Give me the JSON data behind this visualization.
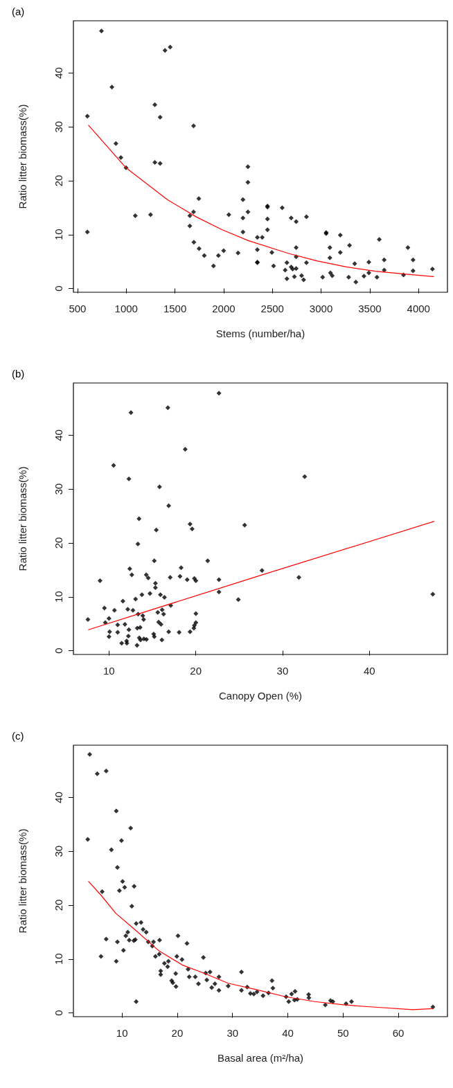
{
  "chart_data": [
    {
      "type": "scatter",
      "title": "(a)",
      "xlabel": "Stems (number/ha)",
      "ylabel": "Ratio litter biomass(%)",
      "xlim": [
        458,
        4297
      ],
      "ylim": [
        -0.7,
        49.7
      ],
      "xticks": [
        500,
        1000,
        1500,
        2000,
        2500,
        3000,
        3500,
        4000
      ],
      "yticks": [
        0,
        10,
        20,
        30,
        40
      ],
      "grid": false,
      "series": [
        {
          "marker": "diamond",
          "color": "#000000",
          "x": [
            601,
            601,
            746,
            853,
            894,
            945,
            998,
            1093,
            1250,
            1294,
            1294,
            1348,
            1348,
            1398,
            1451,
            1653,
            1653,
            1691,
            1691,
            1694,
            1745,
            1748,
            1801,
            1896,
            1946,
            2000,
            2053,
            2148,
            2198,
            2198,
            2198,
            2249,
            2249,
            2249,
            2346,
            2346,
            2346,
            2346,
            2396,
            2450,
            2450,
            2450,
            2450,
            2495,
            2512,
            2601,
            2649,
            2631,
            2649,
            2693,
            2693,
            2708,
            2726,
            2744,
            2744,
            2744,
            2744,
            2800,
            2821,
            2850,
            2850,
            3016,
            3052,
            3052,
            3090,
            3090,
            3096,
            3114,
            3197,
            3197,
            3283,
            3292,
            3345,
            3357,
            3440,
            3490,
            3490,
            3573,
            3597,
            3648,
            3648,
            3846,
            3891,
            3944,
            3944,
            4143
          ],
          "values": [
            32.0,
            10.5,
            47.8,
            37.4,
            26.9,
            24.3,
            22.4,
            13.5,
            13.7,
            34.1,
            23.4,
            31.8,
            23.2,
            44.2,
            44.8,
            11.6,
            13.5,
            30.2,
            14.2,
            8.6,
            16.7,
            7.4,
            6.1,
            4.2,
            6.1,
            7.0,
            13.7,
            6.6,
            16.5,
            13.1,
            10.5,
            22.6,
            19.7,
            14.2,
            9.5,
            7.2,
            4.9,
            4.8,
            9.5,
            15.3,
            15.1,
            12.9,
            10.9,
            6.7,
            4.2,
            15.0,
            4.8,
            3.4,
            1.8,
            13.1,
            4.0,
            3.6,
            2.2,
            12.4,
            7.6,
            5.9,
            3.7,
            2.4,
            1.6,
            13.3,
            4.8,
            2.1,
            10.4,
            10.2,
            7.6,
            5.7,
            2.9,
            2.4,
            9.9,
            6.7,
            2.1,
            8.0,
            4.6,
            1.2,
            2.3,
            4.9,
            2.9,
            2.1,
            9.1,
            5.3,
            3.4,
            2.5,
            7.6,
            5.3,
            3.3,
            3.6
          ]
        },
        {
          "type": "line",
          "marker": "none",
          "color": "#ff0000",
          "x": [
            613,
            998,
            1422,
            1718,
            1985,
            2252,
            2667,
            2963,
            3259,
            3556,
            3852,
            4154
          ],
          "values": [
            30.3,
            22.4,
            16.5,
            13.3,
            10.9,
            8.9,
            6.5,
            5.1,
            4.0,
            3.2,
            2.7,
            2.2
          ]
        }
      ]
    },
    {
      "type": "scatter",
      "title": "(b)",
      "xlabel": "Canopy Open (%)",
      "ylabel": "Ratio litter biomass(%)",
      "xlim": [
        5.9,
        49.0
      ],
      "ylim": [
        -0.7,
        49.7
      ],
      "xticks": [
        10,
        20,
        30,
        40
      ],
      "yticks": [
        0,
        10,
        20,
        30,
        40
      ],
      "grid": false,
      "series": [
        {
          "marker": "diamond",
          "color": "#000000",
          "x": [
            7.57,
            8.97,
            9.47,
            9.57,
            10.0,
            10.07,
            10.0,
            10.53,
            10.63,
            11.0,
            11.0,
            11.46,
            11.6,
            11.83,
            12.03,
            12.06,
            12.16,
            12.23,
            12.29,
            12.29,
            12.39,
            12.53,
            12.63,
            12.76,
            13.06,
            13.23,
            13.26,
            13.33,
            13.36,
            13.46,
            13.49,
            13.59,
            13.63,
            13.79,
            13.89,
            13.99,
            14.02,
            14.29,
            14.32,
            14.52,
            14.72,
            15.15,
            15.22,
            15.22,
            15.35,
            15.35,
            15.45,
            15.62,
            15.72,
            15.82,
            15.92,
            15.99,
            16.09,
            16.12,
            16.29,
            16.39,
            16.78,
            16.88,
            16.88,
            17.05,
            17.12,
            18.08,
            18.18,
            18.31,
            18.78,
            19.01,
            19.34,
            19.34,
            19.58,
            19.78,
            19.84,
            19.84,
            20.01,
            20.01,
            20.01,
            21.37,
            22.67,
            22.67,
            22.67,
            24.9,
            25.63,
            27.63,
            31.88,
            32.55,
            47.31
          ],
          "values": [
            5.8,
            13.0,
            7.9,
            5.2,
            6.0,
            3.5,
            2.6,
            34.4,
            7.5,
            4.8,
            3.4,
            1.4,
            9.2,
            4.9,
            1.8,
            1.4,
            7.7,
            2.7,
            31.9,
            3.9,
            15.2,
            44.2,
            14.1,
            7.5,
            9.6,
            1.0,
            4.2,
            19.8,
            6.8,
            24.5,
            2.4,
            4.3,
            2.0,
            10.4,
            6.5,
            5.8,
            2.2,
            14.1,
            2.1,
            13.5,
            10.6,
            3.1,
            16.7,
            2.6,
            12.5,
            11.7,
            22.4,
            7.1,
            5.3,
            30.4,
            10.4,
            4.9,
            2.0,
            7.6,
            6.8,
            9.9,
            45.1,
            26.9,
            3.5,
            13.6,
            8.4,
            3.4,
            13.8,
            15.4,
            37.4,
            13.2,
            23.5,
            3.5,
            22.6,
            4.2,
            13.4,
            4.7,
            13.0,
            6.9,
            5.2,
            16.7,
            47.8,
            13.2,
            10.9,
            9.5,
            23.3,
            14.9,
            13.6,
            32.3,
            10.5
          ]
        },
        {
          "type": "line",
          "marker": "none",
          "color": "#ff0000",
          "x": [
            7.64,
            27.5,
            47.45
          ],
          "values": [
            3.9,
            14.0,
            24.0
          ]
        }
      ]
    },
    {
      "type": "scatter",
      "title": "(c)",
      "xlabel": "Basal area (m²/ha)",
      "ylabel": "Ratio litter biomass(%)",
      "xlim": [
        1.2,
        68.9
      ],
      "ylim": [
        -0.7,
        49.7
      ],
      "xticks": [
        10,
        20,
        30,
        40,
        50,
        60
      ],
      "yticks": [
        0,
        10,
        20,
        30,
        40
      ],
      "grid": false,
      "series": [
        {
          "marker": "diamond",
          "color": "#000000",
          "x": [
            3.79,
            4.15,
            5.51,
            6.19,
            6.4,
            7.13,
            7.13,
            8.07,
            8.96,
            8.96,
            9.16,
            9.16,
            9.53,
            9.9,
            10.1,
            10.26,
            10.47,
            10.68,
            11.04,
            11.3,
            11.57,
            11.77,
            12.14,
            12.19,
            12.4,
            12.56,
            12.56,
            13.44,
            13.81,
            14.38,
            14.75,
            15.48,
            15.69,
            16.05,
            16.73,
            16.79,
            17.0,
            17.0,
            17.67,
            18.25,
            18.4,
            18.98,
            19.19,
            19.71,
            19.76,
            19.92,
            20.13,
            20.86,
            21.75,
            21.96,
            22.16,
            23.26,
            23.83,
            24.72,
            25.14,
            25.34,
            25.92,
            26.23,
            26.81,
            27.54,
            27.54,
            29.21,
            31.61,
            31.61,
            32.65,
            33.23,
            33.85,
            34.43,
            35.52,
            36.51,
            37.14,
            37.3,
            39.7,
            40.17,
            40.69,
            41.32,
            41.21,
            41.73,
            43.77,
            43.82,
            46.79,
            47.74,
            48.15,
            50.55,
            51.54,
            66.26
          ],
          "values": [
            32.2,
            48.0,
            44.4,
            10.5,
            22.5,
            44.9,
            13.7,
            30.3,
            37.5,
            9.6,
            27.0,
            13.2,
            22.7,
            32.0,
            24.4,
            11.6,
            23.3,
            14.3,
            15.0,
            13.5,
            34.3,
            19.8,
            13.4,
            23.5,
            13.6,
            2.1,
            16.6,
            16.8,
            15.5,
            15.0,
            13.2,
            12.4,
            13.2,
            10.5,
            10.9,
            13.5,
            7.8,
            7.1,
            9.2,
            8.6,
            9.6,
            6.0,
            5.6,
            7.3,
            4.9,
            10.5,
            14.3,
            9.9,
            12.9,
            8.1,
            6.7,
            6.7,
            5.4,
            10.3,
            7.4,
            6.1,
            7.6,
            4.7,
            5.4,
            6.7,
            4.2,
            5.0,
            7.6,
            4.2,
            4.8,
            3.6,
            3.5,
            3.9,
            3.2,
            3.7,
            6.0,
            4.6,
            3.0,
            2.1,
            3.5,
            4.0,
            2.4,
            2.5,
            3.4,
            2.8,
            1.5,
            2.3,
            2.1,
            1.7,
            2.1,
            1.1
          ]
        },
        {
          "type": "line",
          "marker": "none",
          "color": "#ff0000",
          "x": [
            3.95,
            6.24,
            8.85,
            12.5,
            16.7,
            20.9,
            25.0,
            29.2,
            34.4,
            39.6,
            44.9,
            50.1,
            55.3,
            62.6,
            66.3
          ],
          "values": [
            24.4,
            21.8,
            18.5,
            15.3,
            11.5,
            8.9,
            7.3,
            5.5,
            4.3,
            3.0,
            2.1,
            1.5,
            1.1,
            0.6,
            0.8
          ]
        }
      ]
    }
  ]
}
